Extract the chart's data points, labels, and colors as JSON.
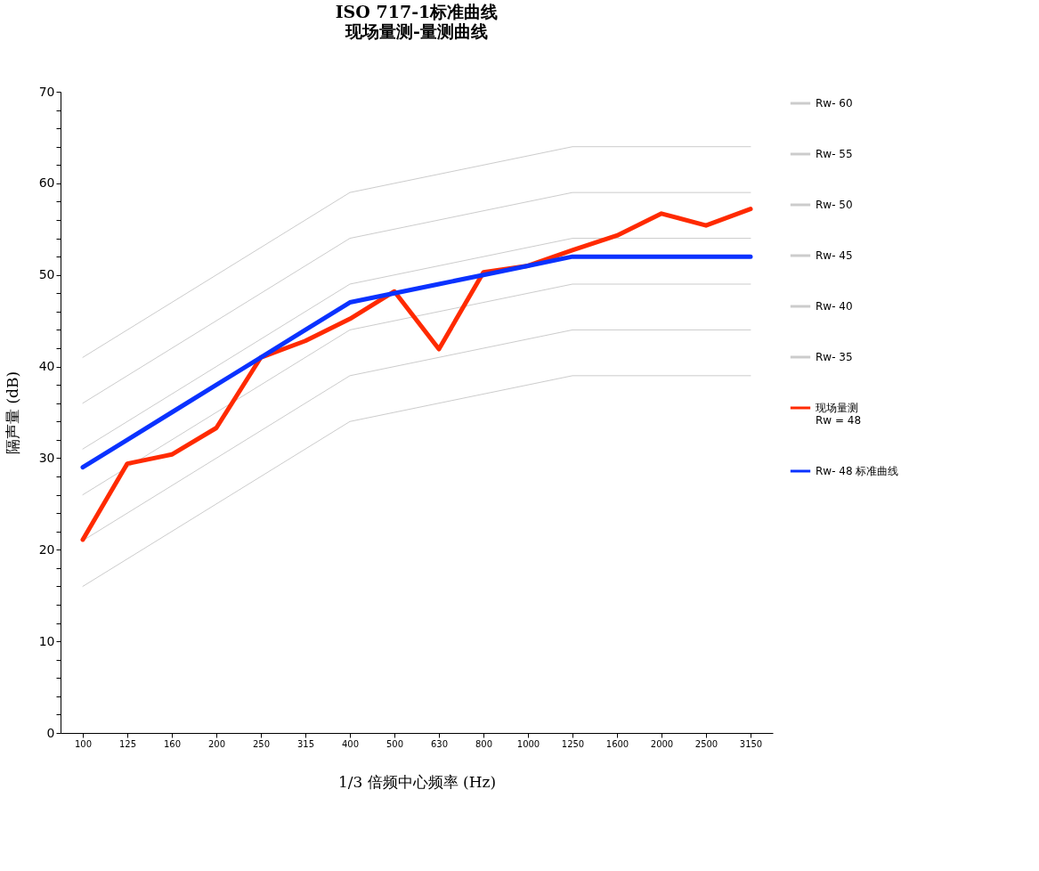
{
  "chart_data": {
    "type": "line",
    "title": "ISO 717-1标准曲线",
    "subtitle": "现场量测-量测曲线",
    "xlabel": "1/3 倍频中心频率 (Hz)",
    "ylabel": "隔声量 (dB)",
    "categories": [
      "100",
      "125",
      "160",
      "200",
      "250",
      "315",
      "400",
      "500",
      "630",
      "800",
      "1000",
      "1250",
      "1600",
      "2000",
      "2500",
      "3150"
    ],
    "ylim": [
      0,
      70
    ],
    "yticks": [
      0,
      {
        "value": 2,
        "label": null
      },
      {
        "value": 4,
        "label": null
      },
      {
        "value": 6,
        "label": null
      },
      {
        "value": 8,
        "label": null
      },
      10,
      {
        "value": 12,
        "label": null
      },
      {
        "value": 14,
        "label": null
      },
      {
        "value": 16,
        "label": null
      },
      {
        "value": 18,
        "label": null
      },
      20,
      {
        "value": 22,
        "label": null
      },
      {
        "value": 24,
        "label": null
      },
      {
        "value": 26,
        "label": null
      },
      {
        "value": 28,
        "label": null
      },
      30,
      {
        "value": 32,
        "label": null
      },
      {
        "value": 34,
        "label": null
      },
      {
        "value": 36,
        "label": null
      },
      {
        "value": 38,
        "label": null
      },
      40,
      {
        "value": 42,
        "label": null
      },
      {
        "value": 44,
        "label": null
      },
      {
        "value": 46,
        "label": null
      },
      {
        "value": 48,
        "label": null
      },
      50,
      {
        "value": 52,
        "label": null
      },
      {
        "value": 54,
        "label": null
      },
      {
        "value": 56,
        "label": null
      },
      {
        "value": 58,
        "label": null
      },
      60,
      {
        "value": 62,
        "label": null
      },
      {
        "value": 64,
        "label": null
      },
      {
        "value": 66,
        "label": null
      },
      {
        "value": 68,
        "label": null
      },
      70
    ],
    "grid": false,
    "legend": "right",
    "marker": "none",
    "line_style": "solid",
    "series": [
      {
        "name": "Rw- 60",
        "color": "#cccccc",
        "values": [
          41,
          44,
          47,
          50,
          53,
          56,
          59,
          60,
          61,
          62,
          63,
          64,
          64,
          64,
          64,
          64
        ]
      },
      {
        "name": "Rw- 55",
        "color": "#cccccc",
        "values": [
          36,
          39,
          42,
          45,
          48,
          51,
          54,
          55,
          56,
          57,
          58,
          59,
          59,
          59,
          59,
          59
        ]
      },
      {
        "name": "Rw- 50",
        "color": "#cccccc",
        "values": [
          31,
          34,
          37,
          40,
          43,
          46,
          49,
          50,
          51,
          52,
          53,
          54,
          54,
          54,
          54,
          54
        ]
      },
      {
        "name": "Rw- 45",
        "color": "#cccccc",
        "values": [
          26,
          29,
          32,
          35,
          38,
          41,
          44,
          45,
          46,
          47,
          48,
          49,
          49,
          49,
          49,
          49
        ]
      },
      {
        "name": "Rw- 40",
        "color": "#cccccc",
        "values": [
          21,
          24,
          27,
          30,
          33,
          36,
          39,
          40,
          41,
          42,
          43,
          44,
          44,
          44,
          44,
          44
        ]
      },
      {
        "name": "Rw- 35",
        "color": "#cccccc",
        "values": [
          16,
          19,
          22,
          25,
          28,
          31,
          34,
          35,
          36,
          37,
          38,
          39,
          39,
          39,
          39,
          39
        ]
      },
      {
        "name": "现场量测\nRw = 48",
        "color": "#ff2a00",
        "values": [
          21.1,
          29.4,
          30.4,
          33.3,
          41.0,
          42.8,
          45.2,
          48.2,
          41.9,
          50.3,
          51.0,
          52.7,
          54.3,
          56.7,
          55.4,
          57.2
        ]
      },
      {
        "name": "Rw- 48 标准曲线",
        "color": "#0a32ff",
        "values": [
          29,
          32,
          35,
          38,
          41,
          44,
          47,
          48,
          49,
          50,
          51,
          52,
          52,
          52,
          52,
          52
        ]
      }
    ]
  }
}
